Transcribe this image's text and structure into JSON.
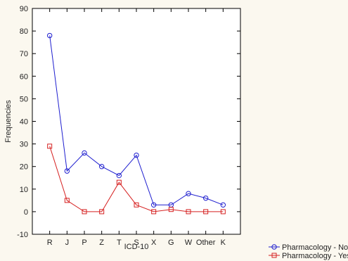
{
  "chart_data": {
    "type": "line",
    "title": "",
    "xlabel": "ICD-10",
    "ylabel": "Frequencies",
    "categories": [
      "R",
      "J",
      "P",
      "Z",
      "T",
      "S",
      "X",
      "G",
      "W",
      "Other",
      "K"
    ],
    "ylim": [
      -10,
      90
    ],
    "yticks": [
      "-10",
      "0",
      "10",
      "20",
      "30",
      "40",
      "50",
      "60",
      "70",
      "80",
      "90"
    ],
    "grid": false,
    "legend_position": "bottom-right, outside plot",
    "series": [
      {
        "name": "Pharmacology - No",
        "color": "#1f1fcf",
        "marker": "circle",
        "values": [
          78,
          18,
          26,
          20,
          16,
          25,
          3,
          3,
          8,
          6,
          3
        ]
      },
      {
        "name": "Pharmacology - Yes",
        "color": "#d62020",
        "marker": "square",
        "values": [
          29,
          5,
          0,
          0,
          13,
          3,
          0,
          1,
          0,
          0,
          0
        ]
      }
    ]
  }
}
